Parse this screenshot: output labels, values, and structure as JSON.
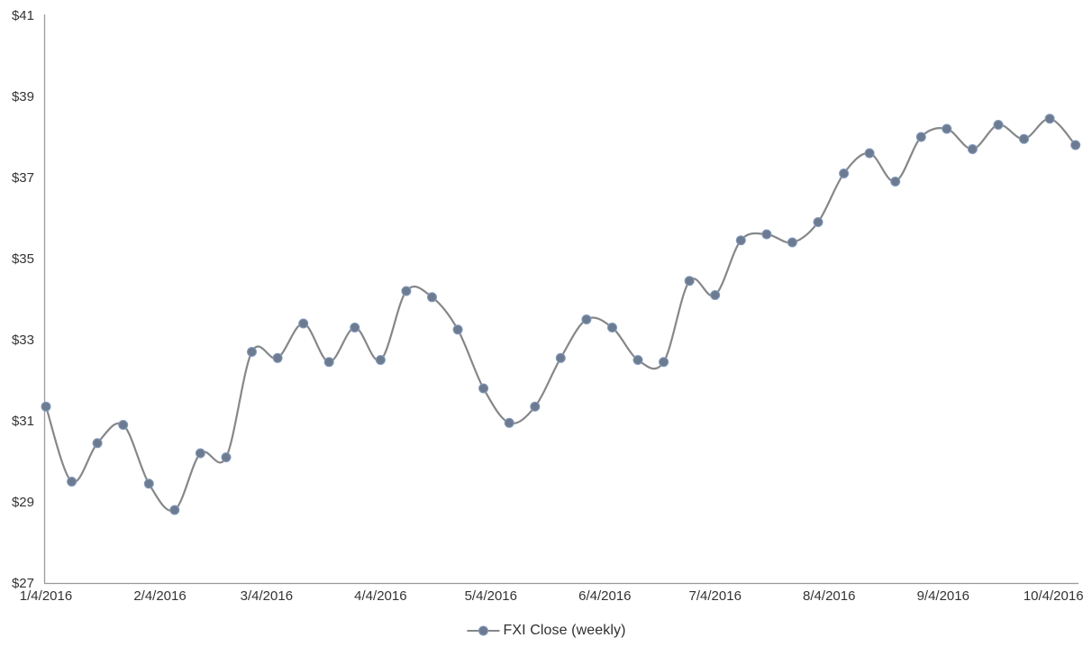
{
  "chart_data": {
    "type": "line",
    "title": "",
    "legend": "FXI Close (weekly)",
    "legend_position": "bottom",
    "grid": false,
    "smooth": true,
    "ylim": [
      27,
      41
    ],
    "y_ticks": [
      41,
      39,
      37,
      35,
      33,
      31,
      29,
      27
    ],
    "y_tick_labels": [
      "$41",
      "$39",
      "$37",
      "$35",
      "$33",
      "$31",
      "$29",
      "$27"
    ],
    "x_ticks": [
      {
        "label": "1/4/2016",
        "day": 0
      },
      {
        "label": "2/4/2016",
        "day": 31
      },
      {
        "label": "3/4/2016",
        "day": 60
      },
      {
        "label": "4/4/2016",
        "day": 91
      },
      {
        "label": "5/4/2016",
        "day": 121
      },
      {
        "label": "6/4/2016",
        "day": 152
      },
      {
        "label": "7/4/2016",
        "day": 182
      },
      {
        "label": "8/4/2016",
        "day": 213
      },
      {
        "label": "9/4/2016",
        "day": 244
      },
      {
        "label": "10/4/2016",
        "day": 274
      }
    ],
    "series": [
      {
        "name": "FXI Close (weekly)",
        "x": [
          "1/4/2016",
          "1/11/2016",
          "1/18/2016",
          "1/25/2016",
          "2/1/2016",
          "2/8/2016",
          "2/15/2016",
          "2/22/2016",
          "2/29/2016",
          "3/7/2016",
          "3/14/2016",
          "3/21/2016",
          "3/28/2016",
          "4/4/2016",
          "4/11/2016",
          "4/18/2016",
          "4/25/2016",
          "5/2/2016",
          "5/9/2016",
          "5/16/2016",
          "5/23/2016",
          "5/30/2016",
          "6/6/2016",
          "6/13/2016",
          "6/20/2016",
          "6/27/2016",
          "7/4/2016",
          "7/11/2016",
          "7/18/2016",
          "7/25/2016",
          "8/1/2016",
          "8/8/2016",
          "8/15/2016",
          "8/22/2016",
          "8/29/2016",
          "9/5/2016",
          "9/12/2016",
          "9/19/2016",
          "9/26/2016",
          "10/3/2016",
          "10/10/2016"
        ],
        "day_offsets": [
          0,
          7,
          14,
          21,
          28,
          35,
          42,
          49,
          56,
          63,
          70,
          77,
          84,
          91,
          98,
          105,
          112,
          119,
          126,
          133,
          140,
          147,
          154,
          161,
          168,
          175,
          182,
          189,
          196,
          203,
          210,
          217,
          224,
          231,
          238,
          245,
          252,
          259,
          266,
          273,
          280
        ],
        "values": [
          31.35,
          29.5,
          30.45,
          30.9,
          29.45,
          28.8,
          30.2,
          30.1,
          32.7,
          32.55,
          33.4,
          32.45,
          33.3,
          32.5,
          34.2,
          34.05,
          33.25,
          31.8,
          30.95,
          31.35,
          32.55,
          33.5,
          33.3,
          32.5,
          32.45,
          34.45,
          34.1,
          35.45,
          35.6,
          35.4,
          35.9,
          37.1,
          37.6,
          36.9,
          38.0,
          38.2,
          37.7,
          38.3,
          37.95,
          38.45,
          37.8
        ]
      }
    ],
    "colors": {
      "line": "#85878a",
      "marker_fill": "#6d7b91",
      "marker_stroke": "#8299bd",
      "axis": "#9a9a9a",
      "tick_text": "#333333",
      "legend_text": "#2f2f2f",
      "background": "#ffffff"
    }
  }
}
